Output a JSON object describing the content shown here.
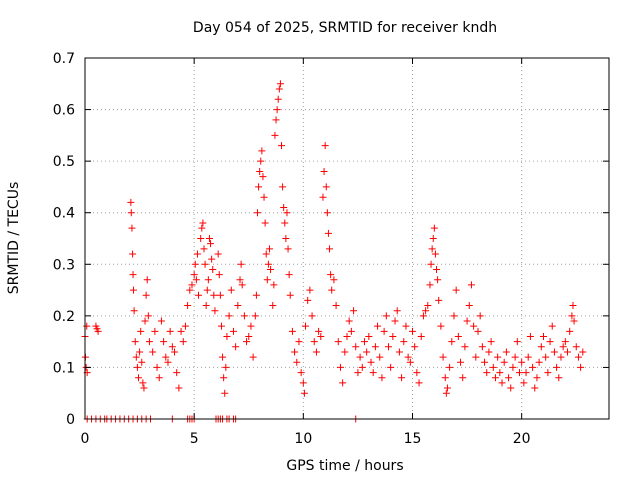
{
  "chart_data": {
    "type": "scatter",
    "title": "Day 054 of 2025, SRMTID for receiver kndh",
    "xlabel": "GPS time / hours",
    "ylabel": "SRMTID / TECUs",
    "xlim": [
      0,
      24
    ],
    "ylim": [
      0,
      0.7
    ],
    "xticks": [
      0,
      5,
      10,
      15,
      20
    ],
    "yticks": [
      0,
      0.1,
      0.2,
      0.3,
      0.4,
      0.5,
      0.6,
      0.7
    ],
    "grid": true,
    "marker": "plus",
    "color": "#ff0000",
    "series": [
      {
        "name": "SRMTID",
        "points": [
          [
            0.0,
            0.16
          ],
          [
            0.02,
            0.12
          ],
          [
            0.05,
            0.1
          ],
          [
            0.08,
            0.18
          ],
          [
            0.1,
            0.09
          ],
          [
            0.5,
            0.18
          ],
          [
            0.55,
            0.175
          ],
          [
            0.6,
            0.17
          ],
          [
            2.1,
            0.42
          ],
          [
            2.12,
            0.4
          ],
          [
            2.15,
            0.37
          ],
          [
            2.18,
            0.32
          ],
          [
            2.2,
            0.28
          ],
          [
            2.22,
            0.25
          ],
          [
            2.25,
            0.21
          ],
          [
            2.3,
            0.15
          ],
          [
            2.35,
            0.12
          ],
          [
            2.4,
            0.1
          ],
          [
            2.45,
            0.08
          ],
          [
            2.5,
            0.13
          ],
          [
            2.55,
            0.17
          ],
          [
            2.6,
            0.11
          ],
          [
            2.65,
            0.07
          ],
          [
            2.7,
            0.06
          ],
          [
            2.75,
            0.19
          ],
          [
            2.8,
            0.24
          ],
          [
            2.85,
            0.27
          ],
          [
            2.9,
            0.2
          ],
          [
            2.95,
            0.15
          ],
          [
            3.1,
            0.13
          ],
          [
            3.2,
            0.17
          ],
          [
            3.3,
            0.1
          ],
          [
            3.4,
            0.08
          ],
          [
            3.5,
            0.19
          ],
          [
            3.6,
            0.15
          ],
          [
            3.7,
            0.12
          ],
          [
            3.8,
            0.11
          ],
          [
            3.9,
            0.17
          ],
          [
            4.0,
            0.14
          ],
          [
            4.1,
            0.13
          ],
          [
            4.2,
            0.09
          ],
          [
            4.3,
            0.06
          ],
          [
            4.4,
            0.17
          ],
          [
            4.5,
            0.15
          ],
          [
            4.6,
            0.18
          ],
          [
            4.7,
            0.22
          ],
          [
            4.8,
            0.25
          ],
          [
            4.9,
            0.26
          ],
          [
            5.0,
            0.28
          ],
          [
            5.05,
            0.3
          ],
          [
            5.1,
            0.27
          ],
          [
            5.15,
            0.32
          ],
          [
            5.2,
            0.24
          ],
          [
            5.3,
            0.35
          ],
          [
            5.35,
            0.37
          ],
          [
            5.4,
            0.38
          ],
          [
            5.45,
            0.33
          ],
          [
            5.5,
            0.3
          ],
          [
            5.55,
            0.22
          ],
          [
            5.6,
            0.25
          ],
          [
            5.65,
            0.27
          ],
          [
            5.7,
            0.35
          ],
          [
            5.75,
            0.34
          ],
          [
            5.8,
            0.31
          ],
          [
            5.85,
            0.29
          ],
          [
            5.9,
            0.24
          ],
          [
            5.95,
            0.21
          ],
          [
            6.1,
            0.32
          ],
          [
            6.15,
            0.28
          ],
          [
            6.2,
            0.24
          ],
          [
            6.25,
            0.18
          ],
          [
            6.3,
            0.12
          ],
          [
            6.35,
            0.08
          ],
          [
            6.4,
            0.05
          ],
          [
            6.45,
            0.1
          ],
          [
            6.5,
            0.16
          ],
          [
            6.6,
            0.2
          ],
          [
            6.7,
            0.25
          ],
          [
            6.8,
            0.17
          ],
          [
            6.9,
            0.14
          ],
          [
            7.0,
            0.22
          ],
          [
            7.1,
            0.27
          ],
          [
            7.15,
            0.3
          ],
          [
            7.2,
            0.26
          ],
          [
            7.3,
            0.2
          ],
          [
            7.4,
            0.15
          ],
          [
            7.5,
            0.16
          ],
          [
            7.6,
            0.18
          ],
          [
            7.7,
            0.12
          ],
          [
            7.8,
            0.2
          ],
          [
            7.85,
            0.24
          ],
          [
            7.9,
            0.4
          ],
          [
            7.95,
            0.45
          ],
          [
            8.0,
            0.48
          ],
          [
            8.05,
            0.5
          ],
          [
            8.1,
            0.52
          ],
          [
            8.15,
            0.47
          ],
          [
            8.2,
            0.43
          ],
          [
            8.25,
            0.38
          ],
          [
            8.3,
            0.32
          ],
          [
            8.35,
            0.27
          ],
          [
            8.4,
            0.3
          ],
          [
            8.45,
            0.33
          ],
          [
            8.5,
            0.29
          ],
          [
            8.6,
            0.22
          ],
          [
            8.65,
            0.26
          ],
          [
            8.7,
            0.55
          ],
          [
            8.75,
            0.58
          ],
          [
            8.8,
            0.6
          ],
          [
            8.85,
            0.62
          ],
          [
            8.9,
            0.64
          ],
          [
            8.95,
            0.65
          ],
          [
            9.0,
            0.53
          ],
          [
            9.05,
            0.45
          ],
          [
            9.1,
            0.41
          ],
          [
            9.15,
            0.38
          ],
          [
            9.2,
            0.35
          ],
          [
            9.25,
            0.4
          ],
          [
            9.3,
            0.33
          ],
          [
            9.35,
            0.28
          ],
          [
            9.4,
            0.24
          ],
          [
            9.5,
            0.17
          ],
          [
            9.6,
            0.13
          ],
          [
            9.7,
            0.11
          ],
          [
            9.8,
            0.15
          ],
          [
            9.9,
            0.09
          ],
          [
            10.0,
            0.07
          ],
          [
            10.05,
            0.05
          ],
          [
            10.1,
            0.18
          ],
          [
            10.2,
            0.23
          ],
          [
            10.3,
            0.25
          ],
          [
            10.4,
            0.2
          ],
          [
            10.5,
            0.15
          ],
          [
            10.6,
            0.13
          ],
          [
            10.7,
            0.17
          ],
          [
            10.8,
            0.16
          ],
          [
            10.9,
            0.43
          ],
          [
            10.95,
            0.48
          ],
          [
            11.0,
            0.53
          ],
          [
            11.05,
            0.45
          ],
          [
            11.1,
            0.4
          ],
          [
            11.15,
            0.36
          ],
          [
            11.2,
            0.33
          ],
          [
            11.25,
            0.28
          ],
          [
            11.3,
            0.25
          ],
          [
            11.4,
            0.27
          ],
          [
            11.5,
            0.22
          ],
          [
            11.6,
            0.15
          ],
          [
            11.7,
            0.1
          ],
          [
            11.8,
            0.07
          ],
          [
            11.9,
            0.13
          ],
          [
            12.0,
            0.16
          ],
          [
            12.1,
            0.19
          ],
          [
            12.2,
            0.17
          ],
          [
            12.3,
            0.21
          ],
          [
            12.4,
            0.14
          ],
          [
            12.5,
            0.09
          ],
          [
            12.6,
            0.12
          ],
          [
            12.7,
            0.1
          ],
          [
            12.8,
            0.15
          ],
          [
            12.9,
            0.13
          ],
          [
            13.0,
            0.16
          ],
          [
            13.1,
            0.11
          ],
          [
            13.2,
            0.09
          ],
          [
            13.3,
            0.14
          ],
          [
            13.4,
            0.18
          ],
          [
            13.5,
            0.12
          ],
          [
            13.6,
            0.08
          ],
          [
            13.7,
            0.17
          ],
          [
            13.8,
            0.2
          ],
          [
            13.9,
            0.14
          ],
          [
            14.0,
            0.1
          ],
          [
            14.1,
            0.16
          ],
          [
            14.2,
            0.19
          ],
          [
            14.3,
            0.21
          ],
          [
            14.4,
            0.13
          ],
          [
            14.5,
            0.08
          ],
          [
            14.6,
            0.15
          ],
          [
            14.7,
            0.18
          ],
          [
            14.8,
            0.12
          ],
          [
            14.9,
            0.11
          ],
          [
            15.0,
            0.17
          ],
          [
            15.1,
            0.14
          ],
          [
            15.2,
            0.09
          ],
          [
            15.3,
            0.07
          ],
          [
            15.4,
            0.16
          ],
          [
            15.5,
            0.2
          ],
          [
            15.6,
            0.21
          ],
          [
            15.7,
            0.22
          ],
          [
            15.8,
            0.26
          ],
          [
            15.85,
            0.3
          ],
          [
            15.9,
            0.33
          ],
          [
            15.95,
            0.35
          ],
          [
            16.0,
            0.37
          ],
          [
            16.05,
            0.32
          ],
          [
            16.1,
            0.29
          ],
          [
            16.15,
            0.27
          ],
          [
            16.2,
            0.23
          ],
          [
            16.3,
            0.18
          ],
          [
            16.4,
            0.12
          ],
          [
            16.5,
            0.08
          ],
          [
            16.55,
            0.05
          ],
          [
            16.6,
            0.06
          ],
          [
            16.7,
            0.1
          ],
          [
            16.8,
            0.15
          ],
          [
            16.9,
            0.2
          ],
          [
            17.0,
            0.25
          ],
          [
            17.1,
            0.16
          ],
          [
            17.2,
            0.11
          ],
          [
            17.3,
            0.08
          ],
          [
            17.4,
            0.14
          ],
          [
            17.5,
            0.19
          ],
          [
            17.6,
            0.22
          ],
          [
            17.7,
            0.26
          ],
          [
            17.8,
            0.18
          ],
          [
            17.9,
            0.12
          ],
          [
            18.0,
            0.17
          ],
          [
            18.1,
            0.2
          ],
          [
            18.2,
            0.14
          ],
          [
            18.3,
            0.11
          ],
          [
            18.4,
            0.09
          ],
          [
            18.5,
            0.13
          ],
          [
            18.6,
            0.15
          ],
          [
            18.7,
            0.1
          ],
          [
            18.8,
            0.08
          ],
          [
            18.9,
            0.12
          ],
          [
            19.0,
            0.09
          ],
          [
            19.1,
            0.07
          ],
          [
            19.2,
            0.11
          ],
          [
            19.3,
            0.13
          ],
          [
            19.4,
            0.08
          ],
          [
            19.5,
            0.06
          ],
          [
            19.6,
            0.1
          ],
          [
            19.7,
            0.12
          ],
          [
            19.8,
            0.15
          ],
          [
            19.9,
            0.09
          ],
          [
            20.0,
            0.11
          ],
          [
            20.1,
            0.07
          ],
          [
            20.2,
            0.09
          ],
          [
            20.3,
            0.12
          ],
          [
            20.4,
            0.16
          ],
          [
            20.5,
            0.1
          ],
          [
            20.6,
            0.06
          ],
          [
            20.7,
            0.08
          ],
          [
            20.8,
            0.11
          ],
          [
            20.9,
            0.14
          ],
          [
            21.0,
            0.16
          ],
          [
            21.1,
            0.12
          ],
          [
            21.2,
            0.09
          ],
          [
            21.3,
            0.15
          ],
          [
            21.4,
            0.18
          ],
          [
            21.5,
            0.13
          ],
          [
            21.6,
            0.1
          ],
          [
            21.7,
            0.08
          ],
          [
            21.8,
            0.12
          ],
          [
            21.9,
            0.14
          ],
          [
            22.0,
            0.15
          ],
          [
            22.1,
            0.13
          ],
          [
            22.2,
            0.17
          ],
          [
            22.3,
            0.2
          ],
          [
            22.35,
            0.22
          ],
          [
            22.4,
            0.19
          ],
          [
            22.5,
            0.14
          ],
          [
            22.6,
            0.12
          ],
          [
            22.7,
            0.1
          ],
          [
            22.8,
            0.13
          ],
          [
            0.1,
            0
          ],
          [
            0.3,
            0
          ],
          [
            0.5,
            0
          ],
          [
            0.7,
            0
          ],
          [
            0.9,
            0
          ],
          [
            1.0,
            0
          ],
          [
            1.2,
            0
          ],
          [
            1.4,
            0
          ],
          [
            1.6,
            0
          ],
          [
            1.8,
            0
          ],
          [
            2.0,
            0
          ],
          [
            2.2,
            0
          ],
          [
            2.4,
            0
          ],
          [
            2.6,
            0
          ],
          [
            2.8,
            0
          ],
          [
            3.0,
            0
          ],
          [
            4.0,
            0
          ],
          [
            4.7,
            0
          ],
          [
            4.8,
            0
          ],
          [
            4.9,
            0
          ],
          [
            5.0,
            0
          ],
          [
            6.0,
            0
          ],
          [
            6.1,
            0
          ],
          [
            6.2,
            0
          ],
          [
            6.3,
            0
          ],
          [
            6.5,
            0
          ],
          [
            6.6,
            0
          ],
          [
            6.8,
            0
          ],
          [
            6.9,
            0
          ],
          [
            12.4,
            0
          ]
        ]
      }
    ]
  }
}
